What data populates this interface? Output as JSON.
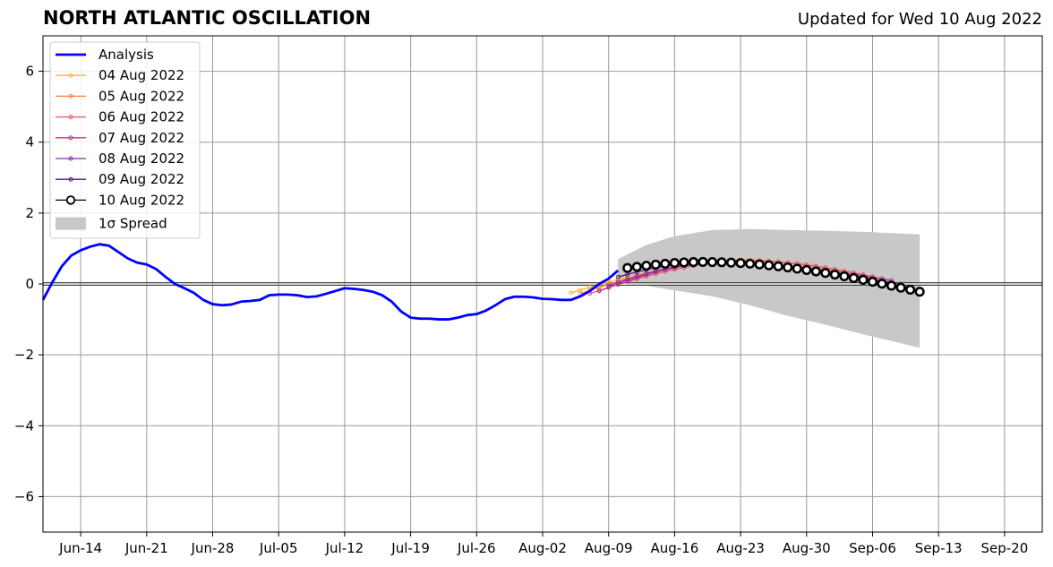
{
  "chart_data": {
    "type": "line",
    "title": "NORTH ATLANTIC OSCILLATION",
    "subtitle": "Updated for Wed 10 Aug 2022",
    "xlabel": "",
    "ylabel": "",
    "x_axis": {
      "type": "date",
      "range": [
        "2022-06-10",
        "2022-09-24"
      ],
      "tick_labels": [
        "Jun-14",
        "Jun-21",
        "Jun-28",
        "Jul-05",
        "Jul-12",
        "Jul-19",
        "Jul-26",
        "Aug-02",
        "Aug-09",
        "Aug-16",
        "Aug-23",
        "Aug-30",
        "Sep-06",
        "Sep-13",
        "Sep-20"
      ],
      "tick_dates": [
        "2022-06-14",
        "2022-06-21",
        "2022-06-28",
        "2022-07-05",
        "2022-07-12",
        "2022-07-19",
        "2022-07-26",
        "2022-08-02",
        "2022-08-09",
        "2022-08-16",
        "2022-08-23",
        "2022-08-30",
        "2022-09-06",
        "2022-09-13",
        "2022-09-20"
      ]
    },
    "ylim": [
      -7,
      7
    ],
    "y_ticks": [
      -6,
      -4,
      -2,
      0,
      2,
      4,
      6
    ],
    "y_tick_labels": [
      "−6",
      "−4",
      "−2",
      "0",
      "2",
      "4",
      "6"
    ],
    "grid": true,
    "legend_position": "top-left",
    "analysis": {
      "name": "Analysis",
      "color": "#0000ff",
      "x": [
        "2022-06-10",
        "2022-06-11",
        "2022-06-12",
        "2022-06-13",
        "2022-06-14",
        "2022-06-15",
        "2022-06-16",
        "2022-06-17",
        "2022-06-18",
        "2022-06-19",
        "2022-06-20",
        "2022-06-21",
        "2022-06-22",
        "2022-06-23",
        "2022-06-24",
        "2022-06-25",
        "2022-06-26",
        "2022-06-27",
        "2022-06-28",
        "2022-06-29",
        "2022-06-30",
        "2022-07-01",
        "2022-07-02",
        "2022-07-03",
        "2022-07-04",
        "2022-07-05",
        "2022-07-06",
        "2022-07-07",
        "2022-07-08",
        "2022-07-09",
        "2022-07-10",
        "2022-07-11",
        "2022-07-12",
        "2022-07-13",
        "2022-07-14",
        "2022-07-15",
        "2022-07-16",
        "2022-07-17",
        "2022-07-18",
        "2022-07-19",
        "2022-07-20",
        "2022-07-21",
        "2022-07-22",
        "2022-07-23",
        "2022-07-24",
        "2022-07-25",
        "2022-07-26",
        "2022-07-27",
        "2022-07-28",
        "2022-07-29",
        "2022-07-30",
        "2022-07-31",
        "2022-08-01",
        "2022-08-02",
        "2022-08-03",
        "2022-08-04",
        "2022-08-05",
        "2022-08-06",
        "2022-08-07",
        "2022-08-08",
        "2022-08-09",
        "2022-08-10"
      ],
      "y": [
        -0.45,
        0.05,
        0.5,
        0.8,
        0.95,
        1.05,
        1.12,
        1.08,
        0.9,
        0.72,
        0.6,
        0.55,
        0.42,
        0.2,
        0.0,
        -0.12,
        -0.25,
        -0.45,
        -0.57,
        -0.6,
        -0.58,
        -0.5,
        -0.48,
        -0.45,
        -0.32,
        -0.3,
        -0.3,
        -0.32,
        -0.37,
        -0.35,
        -0.28,
        -0.2,
        -0.12,
        -0.14,
        -0.17,
        -0.22,
        -0.32,
        -0.5,
        -0.78,
        -0.95,
        -0.98,
        -0.98,
        -1.0,
        -1.0,
        -0.95,
        -0.88,
        -0.85,
        -0.75,
        -0.6,
        -0.43,
        -0.36,
        -0.36,
        -0.38,
        -0.42,
        -0.43,
        -0.45,
        -0.45,
        -0.35,
        -0.2,
        0.0,
        0.15,
        0.38
      ]
    },
    "spread": {
      "name": "1σ Spread",
      "color": "#c8c8c8",
      "x": [
        "2022-08-10",
        "2022-08-13",
        "2022-08-16",
        "2022-08-20",
        "2022-08-24",
        "2022-08-28",
        "2022-09-01",
        "2022-09-05",
        "2022-09-11"
      ],
      "upper": [
        0.7,
        1.1,
        1.35,
        1.52,
        1.55,
        1.52,
        1.5,
        1.47,
        1.4
      ],
      "lower": [
        0.0,
        -0.05,
        -0.18,
        -0.35,
        -0.6,
        -0.9,
        -1.15,
        -1.42,
        -1.8
      ]
    },
    "series": [
      {
        "name": "04 Aug 2022",
        "color": "#f7b63a",
        "start": "2022-08-05",
        "end": "2022-09-05",
        "y_start": -0.25,
        "y_peak": 0.6,
        "peak": "2022-08-22",
        "y_end": 0.15
      },
      {
        "name": "05 Aug 2022",
        "color": "#f3814a",
        "start": "2022-08-06",
        "end": "2022-09-06",
        "y_start": -0.27,
        "y_peak": 0.68,
        "peak": "2022-08-23",
        "y_end": 0.15
      },
      {
        "name": "06 Aug 2022",
        "color": "#e35a6a",
        "start": "2022-08-07",
        "end": "2022-09-07",
        "y_start": -0.27,
        "y_peak": 0.65,
        "peak": "2022-08-24",
        "y_end": 0.15
      },
      {
        "name": "07 Aug 2022",
        "color": "#b83c8c",
        "start": "2022-08-08",
        "end": "2022-09-08",
        "y_start": -0.2,
        "y_peak": 0.6,
        "peak": "2022-08-21",
        "y_end": 0.1
      },
      {
        "name": "08 Aug 2022",
        "color": "#8a2aa6",
        "start": "2022-08-09",
        "end": "2022-09-09",
        "y_start": -0.05,
        "y_peak": 0.58,
        "peak": "2022-08-20",
        "y_end": 0.0
      },
      {
        "name": "09 Aug 2022",
        "color": "#4a1590",
        "start": "2022-08-10",
        "end": "2022-09-10",
        "y_start": 0.2,
        "y_peak": 0.6,
        "peak": "2022-08-19",
        "y_end": -0.1
      },
      {
        "name": "10 Aug 2022",
        "color": "#000000",
        "start": "2022-08-11",
        "end": "2022-09-11",
        "y_start": 0.45,
        "y_peak": 0.62,
        "peak": "2022-08-19",
        "y_end": -0.22
      }
    ],
    "legend": [
      "Analysis",
      "04 Aug 2022",
      "05 Aug 2022",
      "06 Aug 2022",
      "07 Aug 2022",
      "08 Aug 2022",
      "09 Aug 2022",
      "10 Aug 2022",
      "1σ Spread"
    ]
  }
}
